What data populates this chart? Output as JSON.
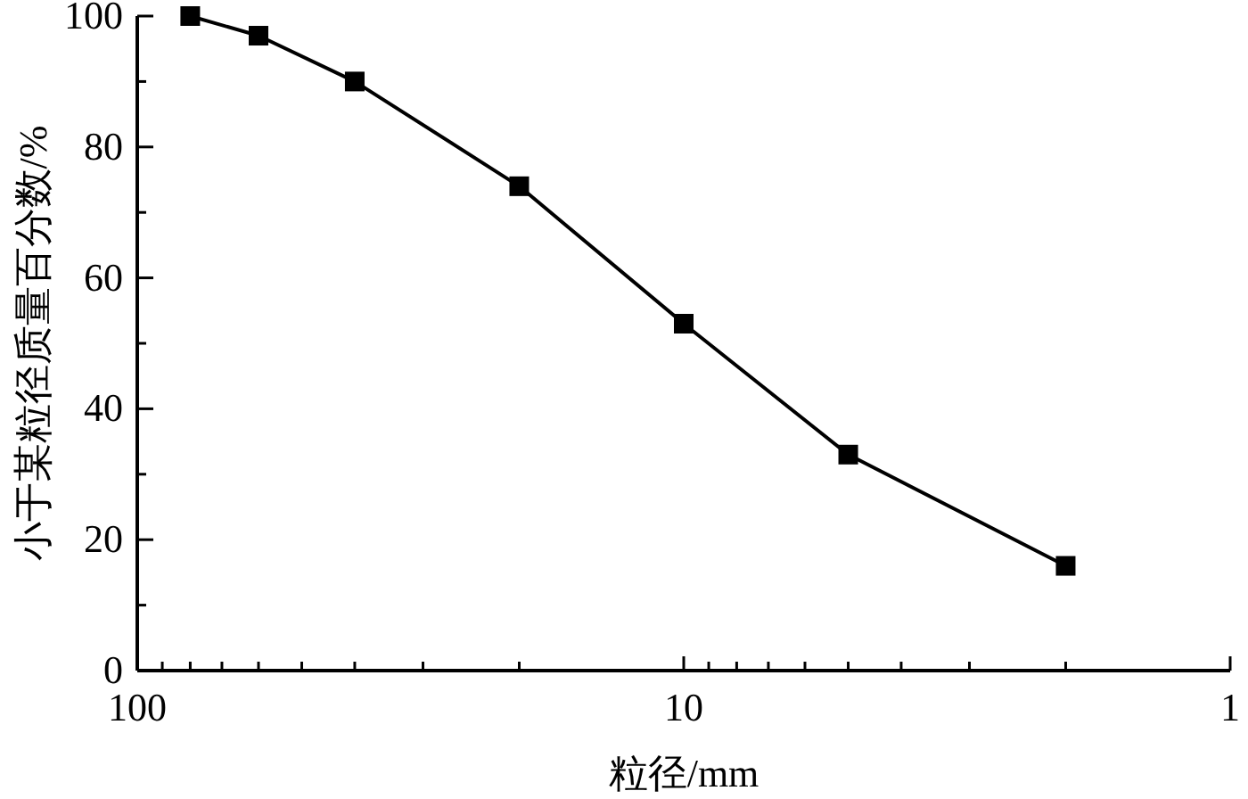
{
  "chart_data": {
    "type": "line",
    "xlabel": "粒径/mm",
    "ylabel": "小于某粒径质量百分数/%",
    "log": "x",
    "marker": "square",
    "line_style": "solid",
    "x": [
      80,
      60,
      40,
      20,
      10,
      5,
      2
    ],
    "series": [
      {
        "color": "#000000",
        "values": [
          100,
          97,
          90,
          74,
          53,
          33,
          16
        ]
      }
    ],
    "xlim": [
      100,
      1
    ],
    "xticks": [
      100,
      {
        "value": 90,
        "label": null
      },
      {
        "value": 80,
        "label": null
      },
      {
        "value": 70,
        "label": null
      },
      {
        "value": 60,
        "label": null
      },
      {
        "value": 50,
        "label": null
      },
      {
        "value": 40,
        "label": null
      },
      {
        "value": 30,
        "label": null
      },
      {
        "value": 20,
        "label": null
      },
      10,
      {
        "value": 9,
        "label": null
      },
      {
        "value": 8,
        "label": null
      },
      {
        "value": 7,
        "label": null
      },
      {
        "value": 6,
        "label": null
      },
      {
        "value": 5,
        "label": null
      },
      {
        "value": 4,
        "label": null
      },
      {
        "value": 3,
        "label": null
      },
      {
        "value": 2,
        "label": null
      },
      1
    ],
    "ylim": [
      0,
      100
    ],
    "yticks": [
      0,
      {
        "value": 10,
        "label": null
      },
      20,
      {
        "value": 30,
        "label": null
      },
      40,
      {
        "value": 50,
        "label": null
      },
      60,
      {
        "value": 70,
        "label": null
      },
      80,
      {
        "value": 90,
        "label": null
      },
      100
    ],
    "grid": false
  }
}
